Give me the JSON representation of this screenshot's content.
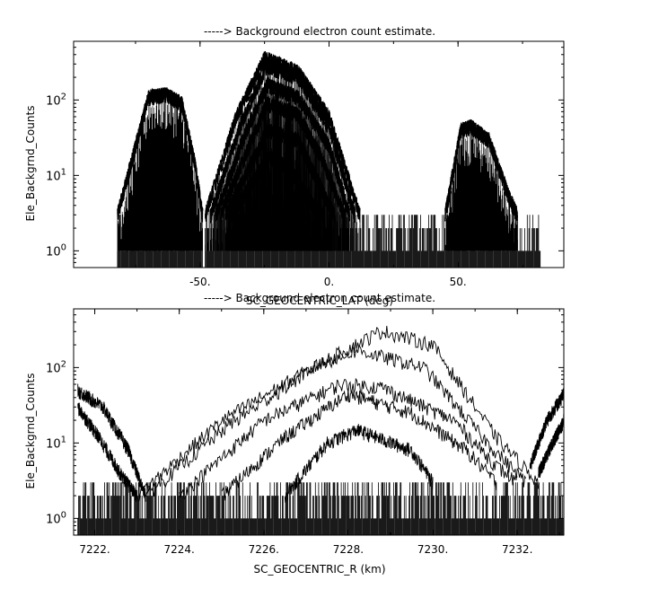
{
  "chart_data": [
    {
      "type": "line",
      "title": "-----> Background electron count estimate.",
      "xlabel": "SC_GEOCENTRIC_LAT (deg)",
      "ylabel": "Ele_Backgrnd_Counts",
      "yscale": "log",
      "xlim": [
        -99,
        91
      ],
      "ylim": [
        0.6,
        600
      ],
      "x_ticks": [
        {
          "value": -50,
          "label": "-50."
        },
        {
          "value": 0,
          "label": "0."
        },
        {
          "value": 50,
          "label": "50."
        }
      ],
      "y_ticks": [
        {
          "value": 1,
          "base": "10",
          "exp": "0"
        },
        {
          "value": 10,
          "base": "10",
          "exp": "1"
        },
        {
          "value": 100,
          "base": "10",
          "exp": "2"
        }
      ],
      "grid": false,
      "series": [
        {
          "kind": "dome",
          "points": [
            [
              -82,
              3
            ],
            [
              -70,
              110
            ],
            [
              -63,
              120
            ],
            [
              -57,
              90
            ],
            [
              -52,
              15
            ],
            [
              -49,
              3
            ]
          ]
        },
        {
          "kind": "dome",
          "points": [
            [
              -48,
              3
            ],
            [
              -36,
              60
            ],
            [
              -25,
              360
            ],
            [
              -12,
              240
            ],
            [
              0,
              60
            ],
            [
              12,
              3
            ]
          ]
        },
        {
          "kind": "dome",
          "points": [
            [
              -46,
              3
            ],
            [
              -34,
              50
            ],
            [
              -24,
              290
            ],
            [
              -12,
              200
            ],
            [
              0,
              45
            ],
            [
              10,
              3
            ]
          ]
        },
        {
          "kind": "dome",
          "points": [
            [
              -44,
              3
            ],
            [
              -32,
              40
            ],
            [
              -24,
              160
            ],
            [
              -12,
              110
            ],
            [
              0,
              25
            ],
            [
              8,
              3
            ]
          ]
        },
        {
          "kind": "dome",
          "points": [
            [
              -42,
              3
            ],
            [
              -30,
              30
            ],
            [
              -24,
              90
            ],
            [
              -12,
              65
            ],
            [
              -2,
              15
            ],
            [
              6,
              3
            ]
          ]
        },
        {
          "kind": "dome",
          "points": [
            [
              -40,
              3
            ],
            [
              -28,
              20
            ],
            [
              -24,
              40
            ],
            [
              -12,
              30
            ],
            [
              -4,
              8
            ],
            [
              2,
              3
            ]
          ]
        },
        {
          "kind": "dome",
          "points": [
            [
              -38,
              3
            ],
            [
              -28,
              10
            ],
            [
              -23,
              18
            ],
            [
              -15,
              12
            ],
            [
              -6,
              4
            ],
            [
              -2,
              3
            ]
          ]
        },
        {
          "kind": "dome",
          "points": [
            [
              45,
              3
            ],
            [
              51,
              40
            ],
            [
              55,
              45
            ],
            [
              62,
              30
            ],
            [
              70,
              5
            ],
            [
              73,
              3
            ]
          ]
        },
        {
          "kind": "noise_floor",
          "segments": [
            [
              -82,
              -49
            ],
            [
              -48,
              12
            ],
            [
              12,
              82
            ]
          ],
          "levels": [
            1,
            2,
            3
          ]
        }
      ]
    },
    {
      "type": "line",
      "title": "-----> Background electron count estimate.",
      "xlabel": "SC_GEOCENTRIC_R (km)",
      "ylabel": "Ele_Backgrnd_Counts",
      "yscale": "log",
      "xlim": [
        7221.5,
        7233.1
      ],
      "ylim": [
        0.6,
        600
      ],
      "x_ticks": [
        {
          "value": 7222,
          "label": "7222."
        },
        {
          "value": 7224,
          "label": "7224."
        },
        {
          "value": 7226,
          "label": "7226."
        },
        {
          "value": 7228,
          "label": "7228."
        },
        {
          "value": 7230,
          "label": "7230."
        },
        {
          "value": 7232,
          "label": "7232."
        }
      ],
      "y_ticks": [
        {
          "value": 1,
          "base": "10",
          "exp": "0"
        },
        {
          "value": 10,
          "base": "10",
          "exp": "1"
        },
        {
          "value": 100,
          "base": "10",
          "exp": "2"
        }
      ],
      "grid": false,
      "series": [
        {
          "kind": "curve",
          "points": [
            [
              7223,
              2
            ],
            [
              7225,
              20
            ],
            [
              7227,
              90
            ],
            [
              7228.8,
              310
            ],
            [
              7230,
              200
            ],
            [
              7231.5,
              12
            ],
            [
              7232.5,
              3
            ]
          ]
        },
        {
          "kind": "curve",
          "points": [
            [
              7223.2,
              2
            ],
            [
              7225.2,
              18
            ],
            [
              7227.3,
              110
            ],
            [
              7228.2,
              170
            ],
            [
              7229.8,
              100
            ],
            [
              7231.3,
              10
            ],
            [
              7232.2,
              3
            ]
          ]
        },
        {
          "kind": "curve",
          "points": [
            [
              7224,
              2
            ],
            [
              7226,
              20
            ],
            [
              7227.8,
              60
            ],
            [
              7228.8,
              55
            ],
            [
              7230.5,
              20
            ],
            [
              7231.5,
              5
            ],
            [
              7232,
              3
            ]
          ]
        },
        {
          "kind": "curve",
          "points": [
            [
              7225,
              2
            ],
            [
              7226.5,
              12
            ],
            [
              7228,
              45
            ],
            [
              7229.5,
              25
            ],
            [
              7230.8,
              8
            ],
            [
              7231.5,
              3
            ]
          ]
        },
        {
          "kind": "curve",
          "points": [
            [
              7226.5,
              2
            ],
            [
              7227.5,
              10
            ],
            [
              7228.2,
              15
            ],
            [
              7229.5,
              8
            ],
            [
              7230,
              3
            ]
          ]
        },
        {
          "kind": "curve",
          "points": [
            [
              7221.6,
              50
            ],
            [
              7222.2,
              30
            ],
            [
              7222.8,
              8
            ],
            [
              7223.2,
              2
            ]
          ]
        },
        {
          "kind": "curve",
          "points": [
            [
              7221.6,
              30
            ],
            [
              7222.1,
              12
            ],
            [
              7222.6,
              4
            ],
            [
              7223,
              2
            ]
          ]
        },
        {
          "kind": "curve",
          "points": [
            [
              7232.3,
              5
            ],
            [
              7232.7,
              20
            ],
            [
              7233.1,
              45
            ]
          ]
        },
        {
          "kind": "curve",
          "points": [
            [
              7232.5,
              4
            ],
            [
              7232.9,
              12
            ],
            [
              7233.1,
              20
            ]
          ]
        },
        {
          "kind": "noise_floor",
          "segments": [
            [
              7221.6,
              7233.1
            ]
          ],
          "levels": [
            1,
            2,
            3
          ]
        }
      ]
    }
  ]
}
